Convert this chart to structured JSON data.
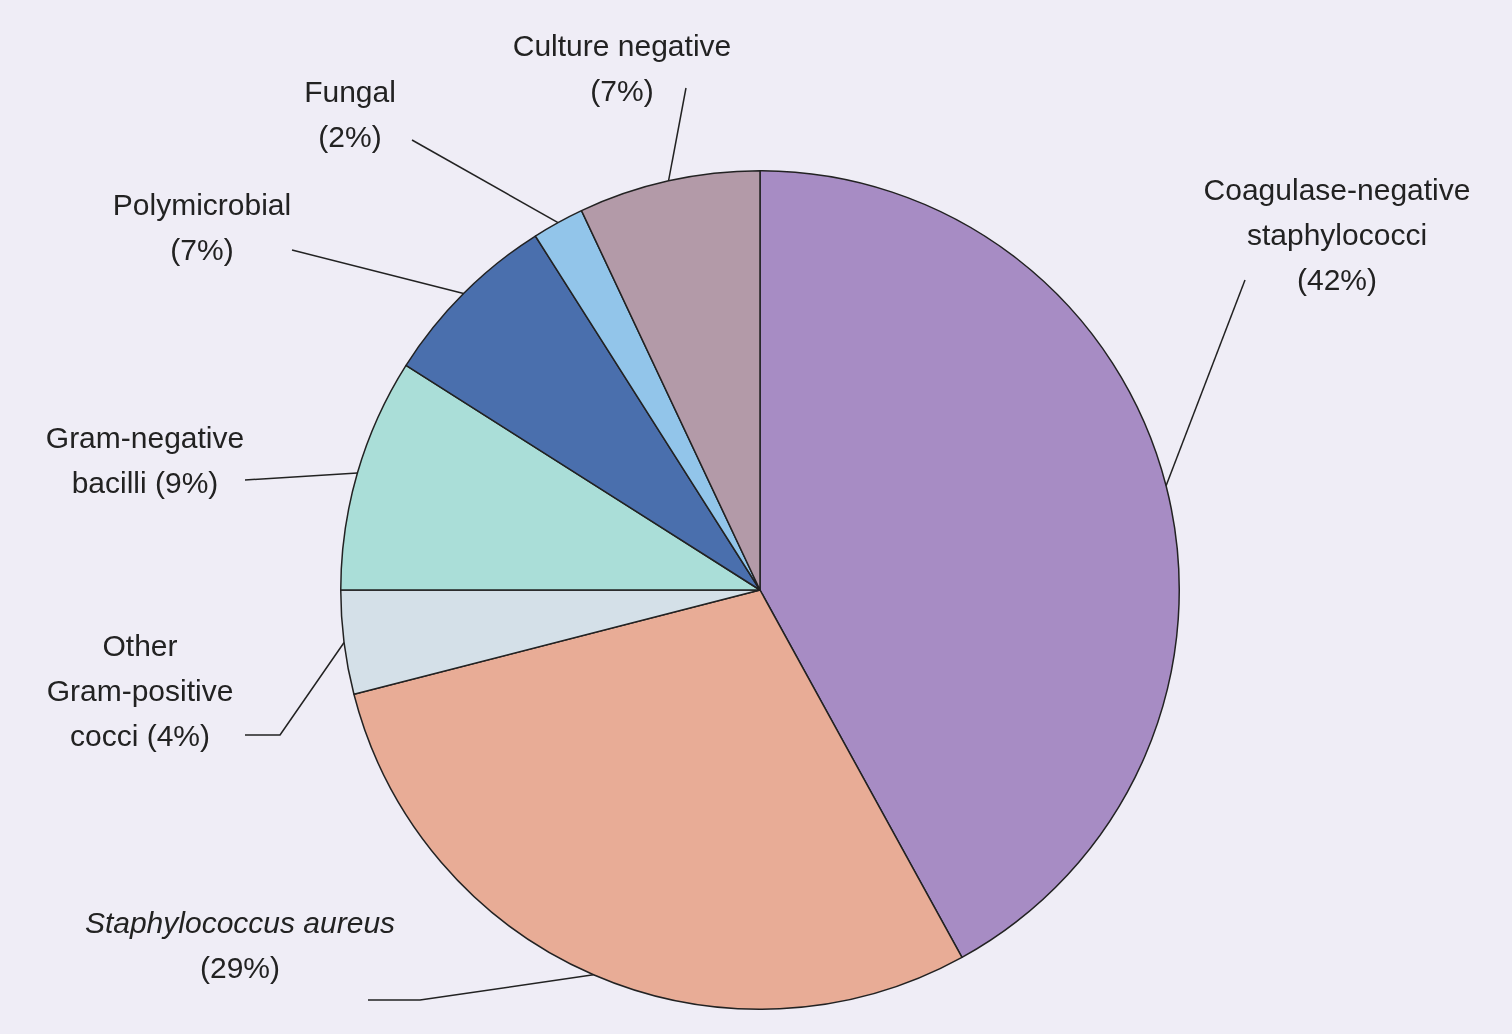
{
  "chart_data": {
    "type": "pie",
    "categories": [
      "Coagulase-negative staphylococci",
      "Staphylococcus aureus",
      "Other Gram-positive cocci",
      "Gram-negative bacilli",
      "Polymicrobial",
      "Fungal",
      "Culture negative"
    ],
    "values": [
      42,
      29,
      4,
      9,
      7,
      2,
      7
    ],
    "value_labels": [
      "(42%)",
      "(29%)",
      "(4%)",
      "(9%)",
      "(7%)",
      "(2%)",
      "(7%)"
    ],
    "colors": [
      "#a78cc4",
      "#e8ac96",
      "#d4e0e8",
      "#aaded8",
      "#4a6fad",
      "#92c5ea",
      "#b39aa8"
    ],
    "legend": false
  }
}
